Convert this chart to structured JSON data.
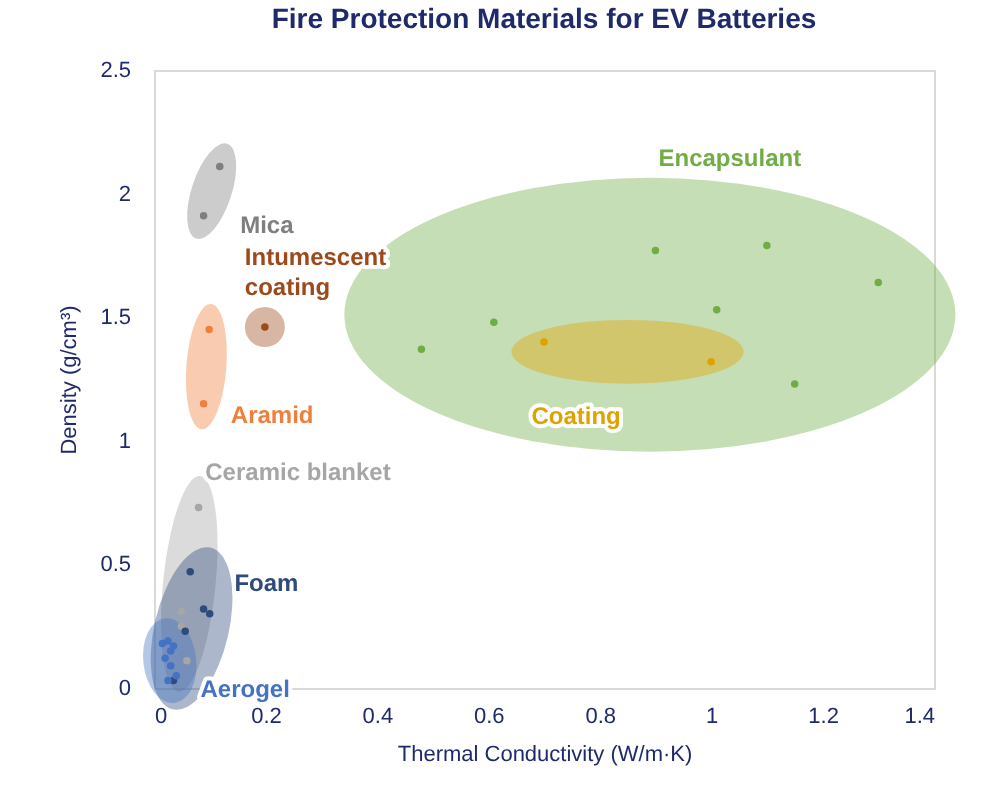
{
  "chart_data": {
    "type": "scatter",
    "title": "Fire Protection Materials for EV Batteries",
    "xlabel": "Thermal Conductivity (W/m·K)",
    "ylabel": "Density (g/cm³)",
    "xlim": [
      0,
      1.4
    ],
    "xticks": [
      0,
      0.2,
      0.4,
      0.6,
      0.8,
      1,
      1.2,
      1.4
    ],
    "ylim": [
      0,
      2.5
    ],
    "yticks": [
      0,
      0.5,
      1,
      1.5,
      2,
      2.5
    ],
    "grid": false,
    "legend": false,
    "marker": "circle",
    "series": [
      {
        "name": "Mica",
        "color": "#7f7f7f",
        "x": [
          0.118,
          0.089
        ],
        "values": [
          2.11,
          1.91
        ]
      },
      {
        "name": "Intumescent coating",
        "color": "#9c4a1a",
        "x": [
          0.199
        ],
        "values": [
          1.46
        ]
      },
      {
        "name": "Aramid",
        "color": "#f07f3c",
        "x": [
          0.099,
          0.089
        ],
        "values": [
          1.45,
          1.15
        ]
      },
      {
        "name": "Ceramic blanket",
        "color": "#a6a6a6",
        "x": [
          0.08,
          0.049,
          0.049,
          0.059
        ],
        "values": [
          0.73,
          0.31,
          0.25,
          0.11
        ]
      },
      {
        "name": "Foam",
        "color": "#2f4b7c",
        "x": [
          0.065,
          0.089,
          0.1,
          0.056,
          0.035
        ],
        "values": [
          0.47,
          0.32,
          0.3,
          0.23,
          0.03
        ]
      },
      {
        "name": "Aerogel",
        "color": "#4472c4",
        "x": [
          0.015,
          0.025,
          0.03,
          0.035,
          0.02,
          0.03,
          0.04,
          0.025
        ],
        "values": [
          0.18,
          0.19,
          0.15,
          0.17,
          0.12,
          0.09,
          0.05,
          0.03
        ]
      },
      {
        "name": "Encapsulant",
        "color": "#70ad47",
        "x": [
          0.48,
          0.61,
          0.9,
          1.1,
          1.3,
          1.01,
          1.15
        ],
        "values": [
          1.37,
          1.48,
          1.77,
          1.79,
          1.64,
          1.53,
          1.23
        ]
      },
      {
        "name": "Coating",
        "color": "#e0a200",
        "x": [
          0.7,
          1.0
        ],
        "values": [
          1.4,
          1.32
        ]
      }
    ]
  }
}
